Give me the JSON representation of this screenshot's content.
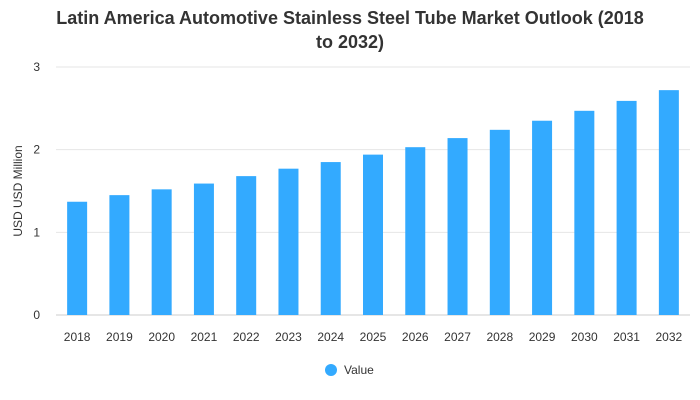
{
  "chart_data": {
    "type": "bar",
    "title_lines": [
      "Latin America Automotive Stainless Steel Tube Market Outlook (2018",
      "to 2032)"
    ],
    "categories": [
      "2018",
      "2019",
      "2020",
      "2021",
      "2022",
      "2023",
      "2024",
      "2025",
      "2026",
      "2027",
      "2028",
      "2029",
      "2030",
      "2031",
      "2032"
    ],
    "series": [
      {
        "name": "Value",
        "color": "#33aaff",
        "values": [
          1.37,
          1.45,
          1.52,
          1.59,
          1.68,
          1.77,
          1.85,
          1.94,
          2.03,
          2.14,
          2.24,
          2.35,
          2.47,
          2.59,
          2.72
        ]
      }
    ],
    "xlabel": "",
    "ylabel": "USD USD Million",
    "ylim": [
      0,
      3
    ],
    "yticks": [
      "0",
      "1",
      "2",
      "3"
    ],
    "grid": true,
    "legend_position": "bottom-center"
  }
}
